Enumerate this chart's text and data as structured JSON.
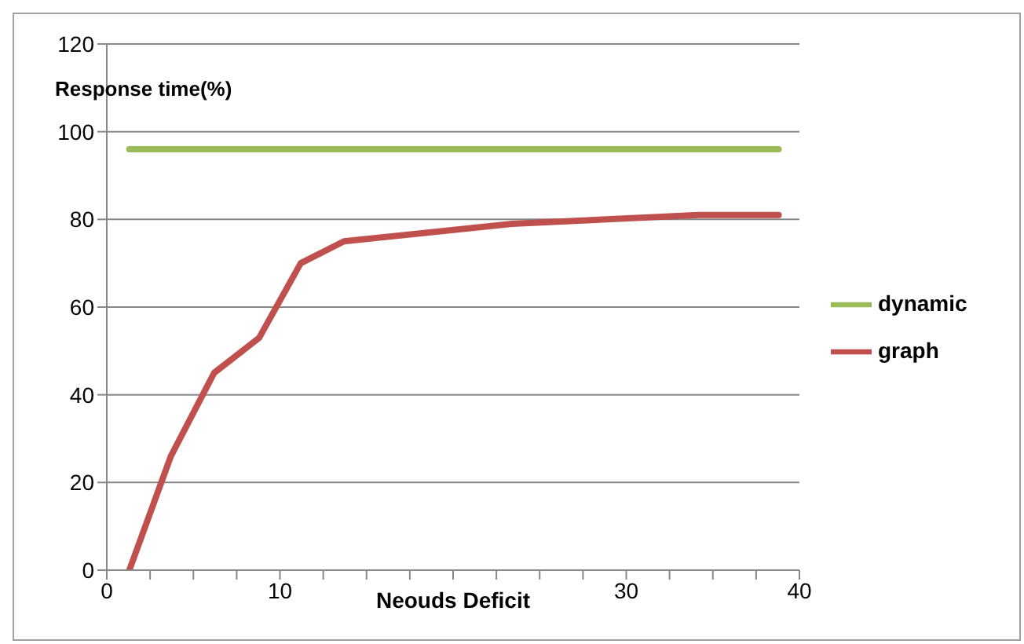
{
  "chart_data": {
    "type": "line",
    "xlabel": "Neouds Deficit",
    "ylabel": "Response time(%)",
    "xlim": [
      0,
      40
    ],
    "xticks": [
      0,
      {
        "value": 2.5,
        "label": null
      },
      {
        "value": 5,
        "label": null
      },
      {
        "value": 7.5,
        "label": null
      },
      10,
      {
        "value": 12.5,
        "label": null
      },
      {
        "value": 15,
        "label": null
      },
      {
        "value": 17.5,
        "label": null
      },
      {
        "value": 20,
        "label": null
      },
      {
        "value": 22.5,
        "label": null
      },
      {
        "value": 25,
        "label": null
      },
      {
        "value": 27.5,
        "label": null
      },
      30,
      {
        "value": 32.5,
        "label": null
      },
      {
        "value": 35,
        "label": null
      },
      {
        "value": 37.5,
        "label": null
      },
      40
    ],
    "ylim": [
      0,
      120
    ],
    "yticks": [
      0,
      20,
      40,
      60,
      80,
      100,
      120
    ],
    "series": [
      {
        "name": "graph",
        "color": "#c0504d",
        "x": [
          1.3,
          3.7,
          6.2,
          8.8,
          11.2,
          13.7,
          23.4,
          34.2,
          38.8
        ],
        "values": [
          0,
          26,
          45,
          53,
          70,
          75,
          79,
          81,
          81
        ]
      },
      {
        "name": "dynamic",
        "color": "#9bbb59",
        "x": [
          1.3,
          38.8
        ],
        "values": [
          96,
          96
        ]
      }
    ],
    "grid": "y",
    "legend": "right",
    "marker": "none",
    "line_style": "solid"
  }
}
